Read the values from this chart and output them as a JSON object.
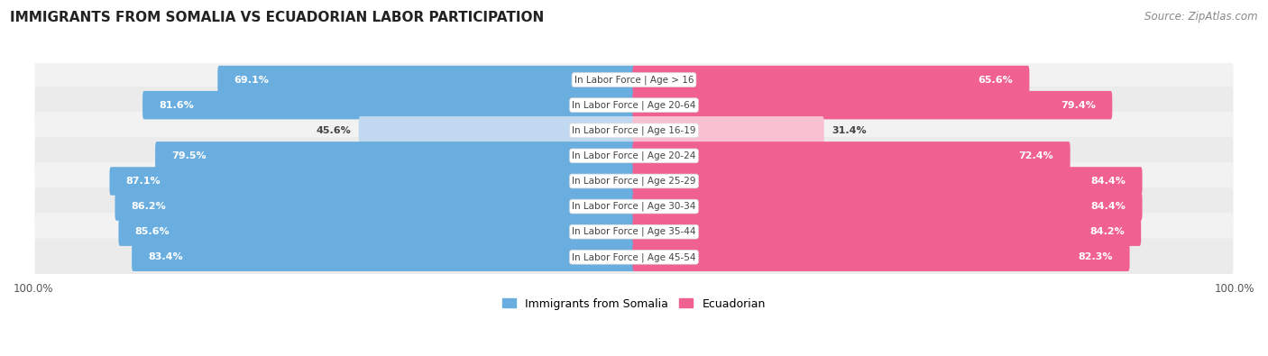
{
  "title": "IMMIGRANTS FROM SOMALIA VS ECUADORIAN LABOR PARTICIPATION",
  "source": "Source: ZipAtlas.com",
  "categories": [
    "In Labor Force | Age > 16",
    "In Labor Force | Age 20-64",
    "In Labor Force | Age 16-19",
    "In Labor Force | Age 20-24",
    "In Labor Force | Age 25-29",
    "In Labor Force | Age 30-34",
    "In Labor Force | Age 35-44",
    "In Labor Force | Age 45-54"
  ],
  "somalia_values": [
    69.1,
    81.6,
    45.6,
    79.5,
    87.1,
    86.2,
    85.6,
    83.4
  ],
  "ecuador_values": [
    65.6,
    79.4,
    31.4,
    72.4,
    84.4,
    84.4,
    84.2,
    82.3
  ],
  "somalia_color": "#6aaee0",
  "ecuador_color": "#f06090",
  "somalia_color_light": "#c0d8f0",
  "ecuador_color_light": "#f8c0d0",
  "row_bg_color": "#f0f0f0",
  "row_alt_bg_color": "#e8e8e8",
  "legend_somalia": "Immigrants from Somalia",
  "legend_ecuador": "Ecuadorian",
  "figsize": [
    14.06,
    3.95
  ],
  "dpi": 100,
  "light_threshold": 60
}
